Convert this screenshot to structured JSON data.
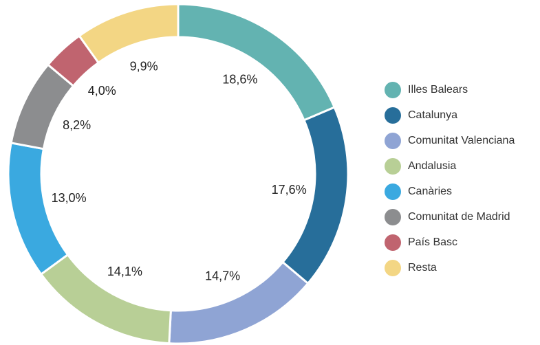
{
  "chart_data": {
    "type": "donut",
    "categories": [
      "Illes Balears",
      "Catalunya",
      "Comunitat Valenciana",
      "Andalusia",
      "Canàries",
      "Comunitat de Madrid",
      "País Basc",
      "Resta"
    ],
    "values": [
      18.6,
      17.6,
      14.7,
      14.1,
      13.0,
      8.2,
      4.0,
      9.9
    ],
    "value_labels": [
      "18,6%",
      "17,6%",
      "14,7%",
      "14,1%",
      "13,0%",
      "8,2%",
      "4,0%",
      "9,9%"
    ],
    "colors": [
      "#63b3b1",
      "#276e9a",
      "#8fa4d4",
      "#b8cf96",
      "#3aa9e0",
      "#8c8d8f",
      "#c0646f",
      "#f3d684"
    ],
    "legend": "right"
  }
}
